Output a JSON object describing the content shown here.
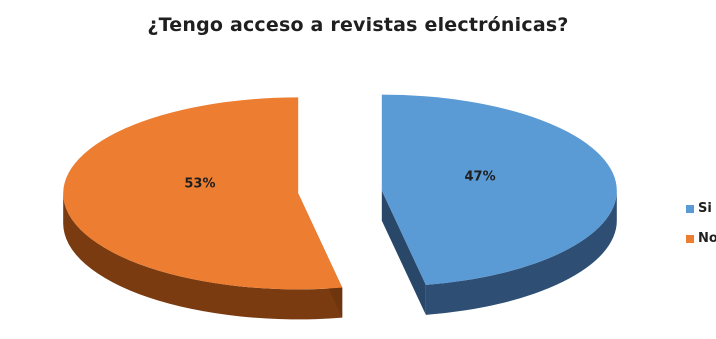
{
  "chart_data": {
    "type": "pie",
    "title": "¿Tengo acceso a revistas electrónicas?",
    "categories": [
      "Si",
      "No"
    ],
    "values": [
      47,
      53
    ],
    "data_labels": [
      "47%",
      "53%"
    ],
    "colors": {
      "Si": {
        "top": "#5b9bd5",
        "side": "#2e4f73"
      },
      "No": {
        "top": "#ed7d31",
        "side": "#7a3b10"
      }
    },
    "style": "3D exploded pie",
    "legend": "right"
  }
}
